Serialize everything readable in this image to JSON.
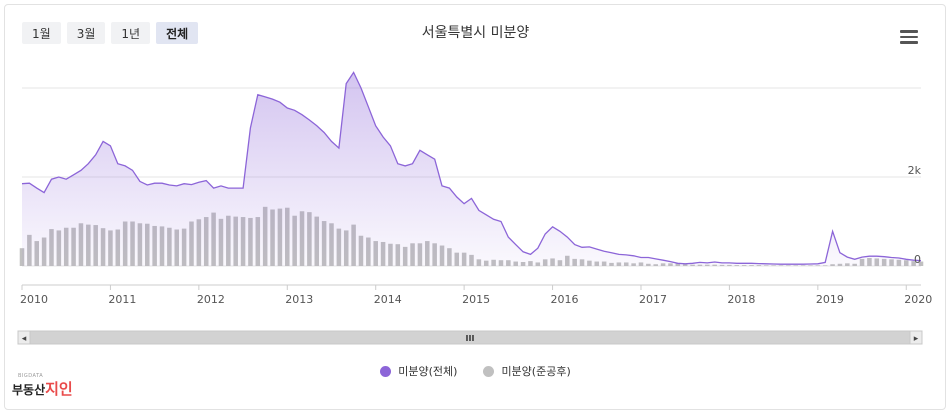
{
  "range_buttons": [
    "1월",
    "3월",
    "1년",
    "전체"
  ],
  "active_range": "전체",
  "chart_data": {
    "type": "line",
    "title": "서울특별시 미분양",
    "x_axis": {
      "type": "date",
      "range": [
        "2010-01",
        "2020-03"
      ],
      "tick_labels": [
        "2010",
        "2011",
        "2012",
        "2013",
        "2014",
        "2015",
        "2016",
        "2017",
        "2018",
        "2019",
        "2020"
      ]
    },
    "y_axis": {
      "range": [
        0,
        4000
      ],
      "tick_labels": [
        "0",
        "2k"
      ],
      "grid": true
    },
    "legend_position": "bottom-center",
    "colors": {
      "total": "#8c65d8",
      "completed": "#c0c0c0"
    },
    "series": [
      {
        "name": "미분양(전체)",
        "type": "area",
        "points": [
          [
            "2010-01",
            1850
          ],
          [
            "2010-02",
            1860
          ],
          [
            "2010-03",
            1750
          ],
          [
            "2010-04",
            1650
          ],
          [
            "2010-05",
            1950
          ],
          [
            "2010-06",
            2000
          ],
          [
            "2010-07",
            1950
          ],
          [
            "2010-08",
            2050
          ],
          [
            "2010-09",
            2150
          ],
          [
            "2010-10",
            2300
          ],
          [
            "2010-11",
            2500
          ],
          [
            "2010-12",
            2800
          ],
          [
            "2011-01",
            2700
          ],
          [
            "2011-02",
            2300
          ],
          [
            "2011-03",
            2250
          ],
          [
            "2011-04",
            2150
          ],
          [
            "2011-05",
            1900
          ],
          [
            "2011-06",
            1820
          ],
          [
            "2011-07",
            1860
          ],
          [
            "2011-08",
            1860
          ],
          [
            "2011-09",
            1820
          ],
          [
            "2011-10",
            1800
          ],
          [
            "2011-11",
            1850
          ],
          [
            "2011-12",
            1830
          ],
          [
            "2012-01",
            1880
          ],
          [
            "2012-02",
            1920
          ],
          [
            "2012-03",
            1750
          ],
          [
            "2012-04",
            1800
          ],
          [
            "2012-05",
            1750
          ],
          [
            "2012-06",
            1750
          ],
          [
            "2012-07",
            1750
          ],
          [
            "2012-08",
            3100
          ],
          [
            "2012-09",
            3850
          ],
          [
            "2012-10",
            3800
          ],
          [
            "2012-11",
            3750
          ],
          [
            "2012-12",
            3680
          ],
          [
            "2013-01",
            3550
          ],
          [
            "2013-02",
            3500
          ],
          [
            "2013-03",
            3400
          ],
          [
            "2013-04",
            3280
          ],
          [
            "2013-05",
            3150
          ],
          [
            "2013-06",
            3000
          ],
          [
            "2013-07",
            2800
          ],
          [
            "2013-08",
            2650
          ],
          [
            "2013-09",
            4100
          ],
          [
            "2013-10",
            4350
          ],
          [
            "2013-11",
            4000
          ],
          [
            "2013-12",
            3580
          ],
          [
            "2014-01",
            3150
          ],
          [
            "2014-02",
            2900
          ],
          [
            "2014-03",
            2700
          ],
          [
            "2014-04",
            2300
          ],
          [
            "2014-05",
            2250
          ],
          [
            "2014-06",
            2300
          ],
          [
            "2014-07",
            2600
          ],
          [
            "2014-08",
            2500
          ],
          [
            "2014-09",
            2400
          ],
          [
            "2014-10",
            1800
          ],
          [
            "2014-11",
            1750
          ],
          [
            "2014-12",
            1550
          ],
          [
            "2015-01",
            1400
          ],
          [
            "2015-02",
            1520
          ],
          [
            "2015-03",
            1250
          ],
          [
            "2015-04",
            1150
          ],
          [
            "2015-05",
            1050
          ],
          [
            "2015-06",
            1000
          ],
          [
            "2015-07",
            650
          ],
          [
            "2015-08",
            480
          ],
          [
            "2015-09",
            320
          ],
          [
            "2015-10",
            260
          ],
          [
            "2015-11",
            400
          ],
          [
            "2015-12",
            720
          ],
          [
            "2016-01",
            880
          ],
          [
            "2016-02",
            780
          ],
          [
            "2016-03",
            650
          ],
          [
            "2016-04",
            480
          ],
          [
            "2016-05",
            420
          ],
          [
            "2016-06",
            430
          ],
          [
            "2016-07",
            380
          ],
          [
            "2016-08",
            330
          ],
          [
            "2016-09",
            300
          ],
          [
            "2016-10",
            260
          ],
          [
            "2016-11",
            250
          ],
          [
            "2016-12",
            230
          ],
          [
            "2017-01",
            190
          ],
          [
            "2017-02",
            190
          ],
          [
            "2017-03",
            160
          ],
          [
            "2017-04",
            130
          ],
          [
            "2017-05",
            100
          ],
          [
            "2017-06",
            60
          ],
          [
            "2017-07",
            50
          ],
          [
            "2017-08",
            60
          ],
          [
            "2017-09",
            80
          ],
          [
            "2017-10",
            70
          ],
          [
            "2017-11",
            90
          ],
          [
            "2017-12",
            70
          ],
          [
            "2018-01",
            70
          ],
          [
            "2018-02",
            60
          ],
          [
            "2018-03",
            60
          ],
          [
            "2018-04",
            60
          ],
          [
            "2018-05",
            55
          ],
          [
            "2018-06",
            50
          ],
          [
            "2018-07",
            45
          ],
          [
            "2018-08",
            40
          ],
          [
            "2018-09",
            40
          ],
          [
            "2018-10",
            40
          ],
          [
            "2018-11",
            40
          ],
          [
            "2018-12",
            45
          ],
          [
            "2019-01",
            50
          ],
          [
            "2019-02",
            80
          ],
          [
            "2019-03",
            780
          ],
          [
            "2019-04",
            300
          ],
          [
            "2019-05",
            200
          ],
          [
            "2019-06",
            150
          ],
          [
            "2019-07",
            200
          ],
          [
            "2019-08",
            220
          ],
          [
            "2019-09",
            220
          ],
          [
            "2019-10",
            210
          ],
          [
            "2019-11",
            190
          ],
          [
            "2019-12",
            180
          ],
          [
            "2020-01",
            150
          ],
          [
            "2020-02",
            130
          ],
          [
            "2020-03",
            120
          ]
        ]
      },
      {
        "name": "미분양(준공후)",
        "type": "column",
        "points": [
          [
            "2010-01",
            400
          ],
          [
            "2010-02",
            700
          ],
          [
            "2010-03",
            560
          ],
          [
            "2010-04",
            640
          ],
          [
            "2010-05",
            830
          ],
          [
            "2010-06",
            800
          ],
          [
            "2010-07",
            860
          ],
          [
            "2010-08",
            860
          ],
          [
            "2010-09",
            960
          ],
          [
            "2010-10",
            930
          ],
          [
            "2010-11",
            920
          ],
          [
            "2010-12",
            850
          ],
          [
            "2011-01",
            800
          ],
          [
            "2011-02",
            820
          ],
          [
            "2011-03",
            1000
          ],
          [
            "2011-04",
            1000
          ],
          [
            "2011-05",
            960
          ],
          [
            "2011-06",
            950
          ],
          [
            "2011-07",
            900
          ],
          [
            "2011-08",
            890
          ],
          [
            "2011-09",
            860
          ],
          [
            "2011-10",
            820
          ],
          [
            "2011-11",
            840
          ],
          [
            "2011-12",
            1000
          ],
          [
            "2012-01",
            1050
          ],
          [
            "2012-02",
            1100
          ],
          [
            "2012-03",
            1200
          ],
          [
            "2012-04",
            1060
          ],
          [
            "2012-05",
            1130
          ],
          [
            "2012-06",
            1110
          ],
          [
            "2012-07",
            1100
          ],
          [
            "2012-08",
            1080
          ],
          [
            "2012-09",
            1100
          ],
          [
            "2012-10",
            1330
          ],
          [
            "2012-11",
            1270
          ],
          [
            "2012-12",
            1290
          ],
          [
            "2013-01",
            1310
          ],
          [
            "2013-02",
            1130
          ],
          [
            "2013-03",
            1230
          ],
          [
            "2013-04",
            1210
          ],
          [
            "2013-05",
            1110
          ],
          [
            "2013-06",
            1010
          ],
          [
            "2013-07",
            960
          ],
          [
            "2013-08",
            840
          ],
          [
            "2013-09",
            800
          ],
          [
            "2013-10",
            930
          ],
          [
            "2013-11",
            680
          ],
          [
            "2013-12",
            640
          ],
          [
            "2014-01",
            560
          ],
          [
            "2014-02",
            540
          ],
          [
            "2014-03",
            500
          ],
          [
            "2014-04",
            490
          ],
          [
            "2014-05",
            430
          ],
          [
            "2014-06",
            510
          ],
          [
            "2014-07",
            510
          ],
          [
            "2014-08",
            560
          ],
          [
            "2014-09",
            510
          ],
          [
            "2014-10",
            460
          ],
          [
            "2014-11",
            400
          ],
          [
            "2014-12",
            300
          ],
          [
            "2015-01",
            300
          ],
          [
            "2015-02",
            250
          ],
          [
            "2015-03",
            150
          ],
          [
            "2015-04",
            120
          ],
          [
            "2015-05",
            140
          ],
          [
            "2015-06",
            130
          ],
          [
            "2015-07",
            130
          ],
          [
            "2015-08",
            100
          ],
          [
            "2015-09",
            90
          ],
          [
            "2015-10",
            110
          ],
          [
            "2015-11",
            80
          ],
          [
            "2015-12",
            150
          ],
          [
            "2016-01",
            170
          ],
          [
            "2016-02",
            130
          ],
          [
            "2016-03",
            230
          ],
          [
            "2016-04",
            160
          ],
          [
            "2016-05",
            150
          ],
          [
            "2016-06",
            120
          ],
          [
            "2016-07",
            100
          ],
          [
            "2016-08",
            100
          ],
          [
            "2016-09",
            70
          ],
          [
            "2016-10",
            80
          ],
          [
            "2016-11",
            80
          ],
          [
            "2016-12",
            60
          ],
          [
            "2017-01",
            80
          ],
          [
            "2017-02",
            50
          ],
          [
            "2017-03",
            40
          ],
          [
            "2017-04",
            60
          ],
          [
            "2017-05",
            60
          ],
          [
            "2017-06",
            60
          ],
          [
            "2017-07",
            40
          ],
          [
            "2017-08",
            30
          ],
          [
            "2017-09",
            30
          ],
          [
            "2017-10",
            30
          ],
          [
            "2017-11",
            30
          ],
          [
            "2017-12",
            25
          ],
          [
            "2018-01",
            25
          ],
          [
            "2018-02",
            20
          ],
          [
            "2018-03",
            20
          ],
          [
            "2018-04",
            20
          ],
          [
            "2018-05",
            20
          ],
          [
            "2018-06",
            15
          ],
          [
            "2018-07",
            15
          ],
          [
            "2018-08",
            15
          ],
          [
            "2018-09",
            15
          ],
          [
            "2018-10",
            15
          ],
          [
            "2018-11",
            15
          ],
          [
            "2018-12",
            15
          ],
          [
            "2019-01",
            15
          ],
          [
            "2019-02",
            15
          ],
          [
            "2019-03",
            40
          ],
          [
            "2019-04",
            50
          ],
          [
            "2019-05",
            60
          ],
          [
            "2019-06",
            50
          ],
          [
            "2019-07",
            160
          ],
          [
            "2019-08",
            180
          ],
          [
            "2019-09",
            170
          ],
          [
            "2019-10",
            160
          ],
          [
            "2019-11",
            150
          ],
          [
            "2019-12",
            140
          ],
          [
            "2020-01",
            130
          ],
          [
            "2020-02",
            110
          ],
          [
            "2020-03",
            100
          ]
        ]
      }
    ]
  },
  "navigator": {
    "handle_glyph": "III",
    "left_arrow": "◂",
    "right_arrow": "▸"
  },
  "logo": {
    "tagline": "BIGDATA",
    "text_a": "부동산",
    "text_b": "지인"
  }
}
